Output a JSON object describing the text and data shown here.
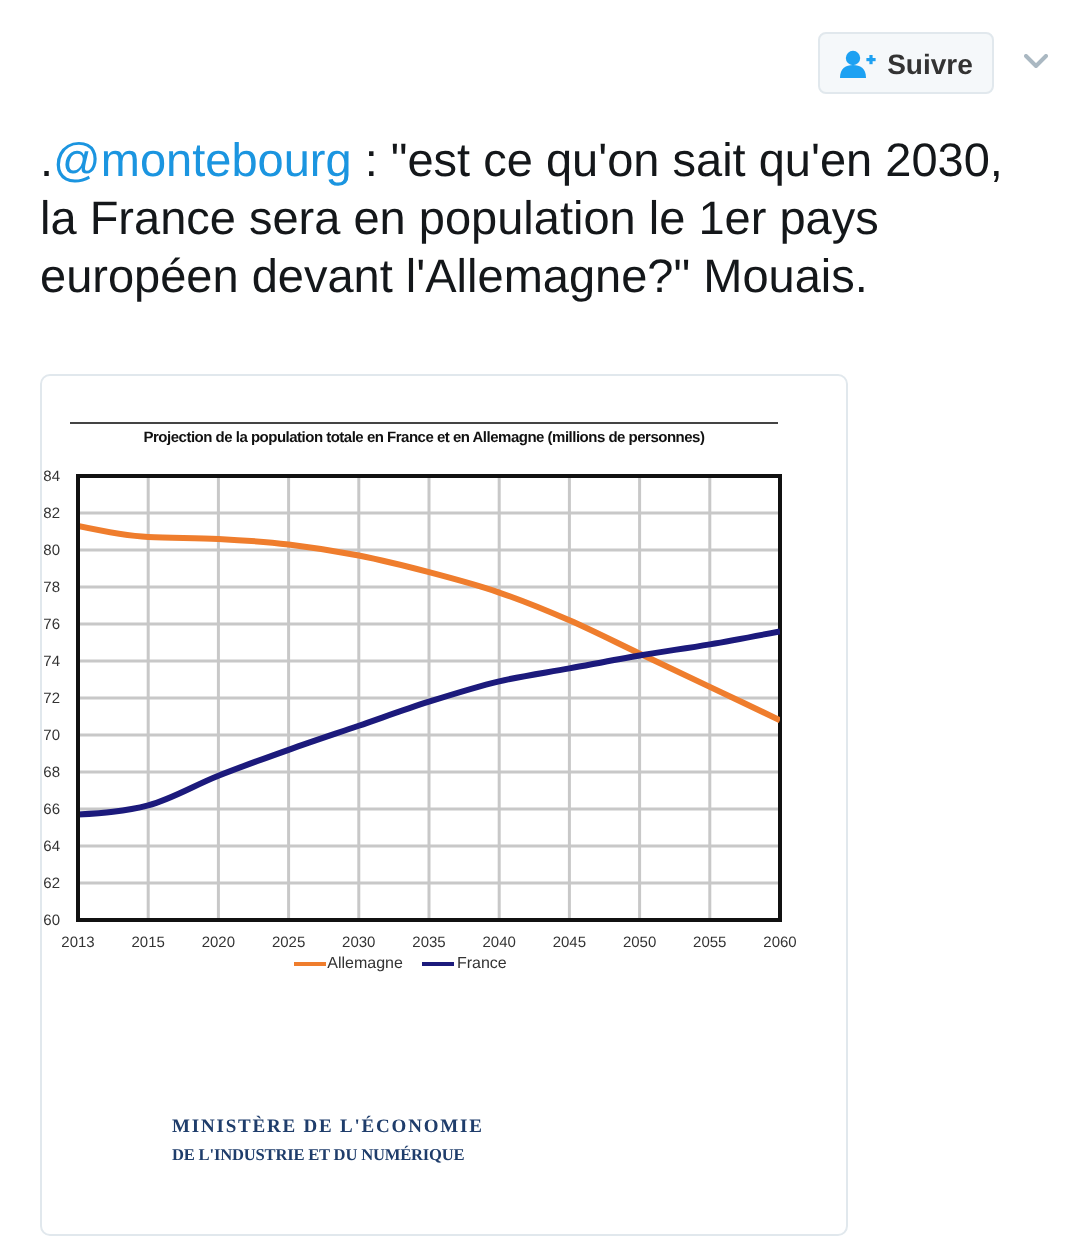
{
  "chart_data": {
    "type": "line",
    "title": "Projection de la population totale en France et en Allemagne (millions de personnes)",
    "categories": [
      "2013",
      "2015",
      "2020",
      "2025",
      "2030",
      "2035",
      "2040",
      "2045",
      "2050",
      "2055",
      "2060"
    ],
    "series": [
      {
        "name": "Allemagne",
        "color": "#ef7d2d",
        "values": [
          81.3,
          80.7,
          80.6,
          80.3,
          79.7,
          78.8,
          77.7,
          76.2,
          74.4,
          72.6,
          70.8
        ]
      },
      {
        "name": "France",
        "color": "#1c1a7c",
        "values": [
          65.7,
          66.2,
          67.8,
          69.2,
          70.5,
          71.8,
          72.9,
          73.6,
          74.3,
          74.9,
          75.6
        ]
      }
    ],
    "ylim": [
      60,
      84
    ],
    "yticks": [
      60,
      62,
      64,
      66,
      68,
      70,
      72,
      74,
      76,
      78,
      80,
      82,
      84
    ],
    "grid": true,
    "legend": "bottom",
    "line_style": "solid",
    "annotations": [
      ".@montebourg : \"est ce qu'on sait qu'en 2030, la France sera en population le 1er pays européen devant l'Allemagne?\" Mouais.",
      "Suivre",
      "MINISTÈRE DE L'ÉCONOMIE",
      "DE L'INDUSTRIE ET DU NUMÉRIQUE"
    ]
  }
}
